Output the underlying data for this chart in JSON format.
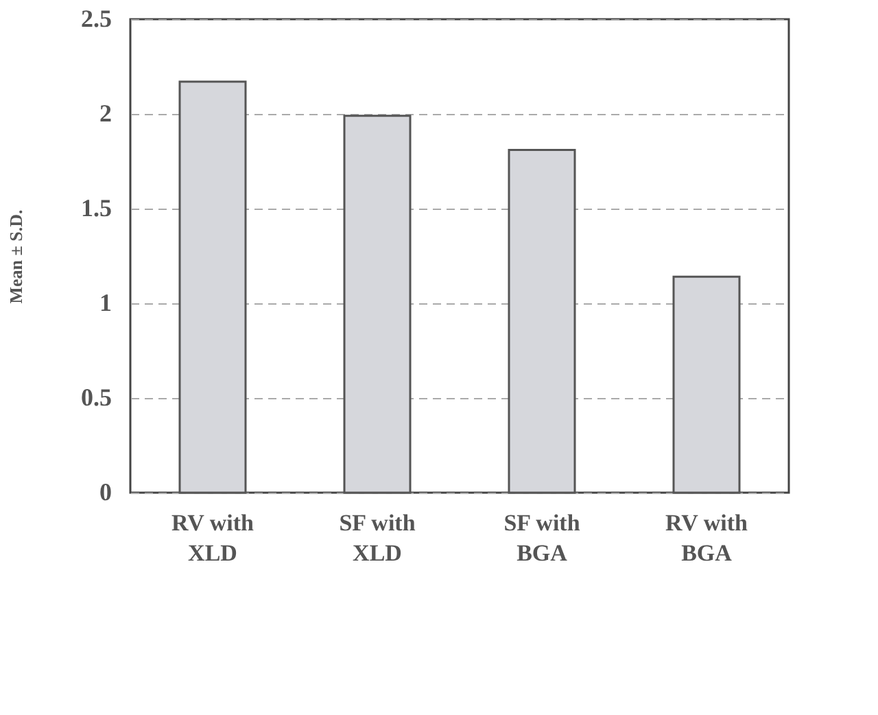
{
  "chart_data": {
    "type": "bar",
    "ylabel": "Mean ± S.D.",
    "categories": [
      "RV with\nXLD",
      "SF with\nXLD",
      "SF with\nBGA",
      "RV with\nBGA"
    ],
    "values": [
      2.17,
      1.99,
      1.81,
      1.14
    ],
    "color": "#d6d7dc",
    "ylim": [
      0,
      2.5
    ],
    "yticks": [
      0,
      0.5,
      1,
      1.5,
      2,
      2.5
    ],
    "grid": "y"
  }
}
